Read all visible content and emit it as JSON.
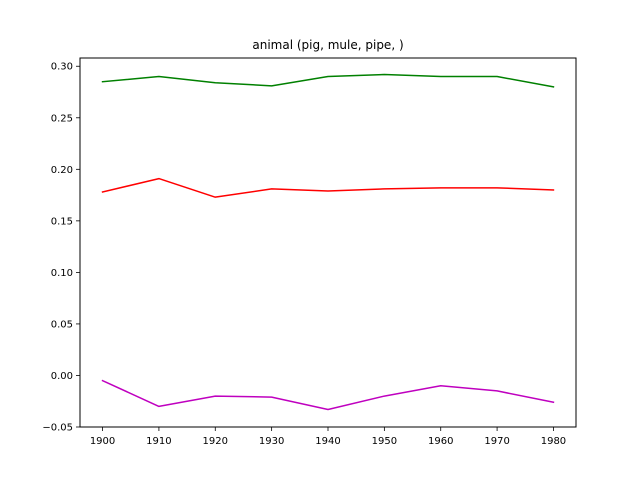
{
  "chart_data": {
    "type": "line",
    "title": "animal (pig, mule, pipe, )",
    "xlabel": "",
    "ylabel": "",
    "x": [
      1900,
      1910,
      1920,
      1930,
      1940,
      1950,
      1960,
      1970,
      1980
    ],
    "xticks": [
      "1900",
      "1910",
      "1920",
      "1930",
      "1940",
      "1950",
      "1960",
      "1970",
      "1980"
    ],
    "xlim": [
      1896,
      1984
    ],
    "ylim": [
      -0.05,
      0.308
    ],
    "yticks": [
      "0.30",
      "0.25",
      "0.20",
      "0.15",
      "0.10",
      "0.05",
      "0.00",
      "−0.05"
    ],
    "ytick_values": [
      0.3,
      0.25,
      0.2,
      0.15,
      0.1,
      0.05,
      0.0,
      -0.05
    ],
    "grid": false,
    "series": [
      {
        "color": "#008000",
        "values": [
          0.285,
          0.29,
          0.284,
          0.281,
          0.29,
          0.292,
          0.29,
          0.29,
          0.28
        ]
      },
      {
        "color": "#ff0000",
        "values": [
          0.178,
          0.191,
          0.173,
          0.181,
          0.179,
          0.181,
          0.182,
          0.182,
          0.18
        ]
      },
      {
        "color": "#bf00bf",
        "values": [
          -0.005,
          -0.03,
          -0.02,
          -0.021,
          -0.033,
          -0.02,
          -0.01,
          -0.015,
          -0.026
        ]
      }
    ]
  }
}
